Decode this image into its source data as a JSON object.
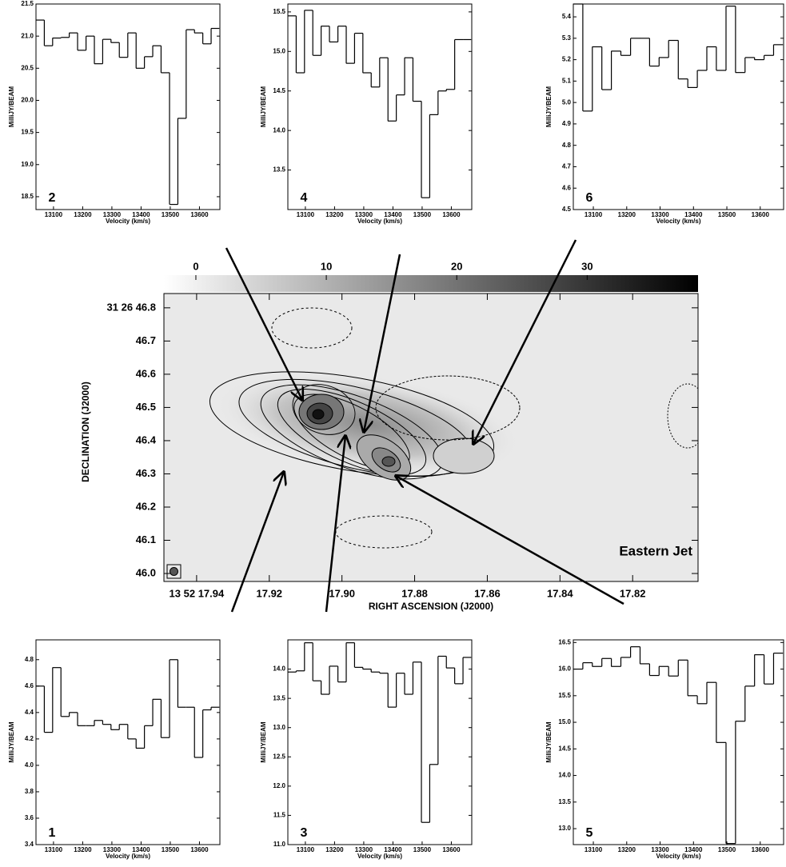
{
  "chart_data": [
    {
      "type": "line",
      "annotation": "2",
      "xlabel": "Velocity (km/s)",
      "ylabel": "MilliJY/BEAM",
      "color": "#000000",
      "x": [
        13054,
        13083,
        13111,
        13140,
        13168,
        13197,
        13226,
        13254,
        13283,
        13311,
        13340,
        13369,
        13397,
        13426,
        13454,
        13483,
        13512,
        13540,
        13569,
        13597,
        13626,
        13654
      ],
      "values": [
        21.25,
        20.85,
        20.97,
        20.98,
        21.05,
        20.78,
        21.0,
        20.57,
        20.95,
        20.9,
        20.67,
        21.05,
        20.5,
        20.68,
        20.85,
        20.43,
        18.38,
        19.72,
        21.1,
        21.05,
        20.88,
        21.12
      ],
      "xlim": [
        13040,
        13670
      ],
      "xticks": [
        13100,
        13200,
        13300,
        13400,
        13500,
        13600
      ],
      "ylim": [
        18.3,
        21.5
      ],
      "yticks": [
        18.5,
        {
          "value": 19,
          "label": "19.0"
        },
        19.5,
        {
          "value": 20,
          "label": "20.0"
        },
        20.5,
        {
          "value": 21,
          "label": "21.0"
        },
        21.5
      ]
    },
    {
      "type": "line",
      "annotation": "4",
      "xlabel": "Velocity (km/s)",
      "ylabel": "MilliJY/BEAM",
      "color": "#000000",
      "x": [
        13054,
        13083,
        13111,
        13140,
        13168,
        13197,
        13226,
        13254,
        13283,
        13311,
        13340,
        13369,
        13397,
        13426,
        13454,
        13483,
        13512,
        13540,
        13569,
        13597,
        13626,
        13654
      ],
      "values": [
        15.45,
        14.73,
        15.52,
        14.95,
        15.32,
        15.12,
        15.32,
        14.85,
        15.23,
        14.73,
        14.55,
        14.92,
        14.12,
        14.45,
        14.92,
        14.37,
        13.15,
        14.2,
        14.5,
        14.52,
        15.15,
        15.15
      ],
      "xlim": [
        13040,
        13670
      ],
      "xticks": [
        13100,
        13200,
        13300,
        13400,
        13500,
        13600
      ],
      "ylim": [
        13.0,
        15.6
      ],
      "yticks": [
        13.5,
        {
          "value": 14,
          "label": "14.0"
        },
        14.5,
        {
          "value": 15,
          "label": "15.0"
        },
        15.5
      ]
    },
    {
      "type": "line",
      "annotation": "6",
      "xlabel": "Velocity (km/s)",
      "ylabel": "MilliJY/BEAM",
      "color": "#000000",
      "x": [
        13054,
        13083,
        13111,
        13140,
        13168,
        13197,
        13226,
        13254,
        13283,
        13311,
        13340,
        13369,
        13397,
        13426,
        13454,
        13483,
        13512,
        13540,
        13569,
        13597,
        13626,
        13654
      ],
      "values": [
        5.46,
        4.96,
        5.26,
        5.06,
        5.24,
        5.22,
        5.3,
        5.3,
        5.17,
        5.21,
        5.29,
        5.11,
        5.07,
        5.15,
        5.26,
        5.15,
        5.45,
        5.14,
        5.21,
        5.2,
        5.22,
        5.27
      ],
      "xlim": [
        13040,
        13670
      ],
      "xticks": [
        13100,
        13200,
        13300,
        13400,
        13500,
        13600
      ],
      "ylim": [
        4.5,
        5.46
      ],
      "yticks": [
        4.5,
        4.6,
        4.7,
        4.8,
        4.9,
        {
          "value": 5,
          "label": "5.0"
        },
        5.1,
        5.2,
        5.3,
        5.4
      ]
    },
    {
      "type": "line",
      "annotation": "1",
      "xlabel": "Velocity (km/s)",
      "ylabel": "MilliJY/BEAM",
      "color": "#000000",
      "x": [
        13054,
        13083,
        13111,
        13140,
        13168,
        13197,
        13226,
        13254,
        13283,
        13311,
        13340,
        13369,
        13397,
        13426,
        13454,
        13483,
        13512,
        13540,
        13569,
        13597,
        13626,
        13654
      ],
      "values": [
        4.6,
        4.25,
        4.74,
        4.37,
        4.4,
        4.3,
        4.3,
        4.34,
        4.31,
        4.27,
        4.31,
        4.2,
        4.13,
        4.3,
        4.5,
        4.21,
        4.8,
        4.44,
        4.44,
        4.06,
        4.42,
        4.44
      ],
      "xlim": [
        13040,
        13670
      ],
      "xticks": [
        13100,
        13200,
        13300,
        13400,
        13500,
        13600
      ],
      "ylim": [
        3.4,
        4.95
      ],
      "yticks": [
        3.4,
        3.6,
        3.8,
        {
          "value": 4,
          "label": "4.0"
        },
        4.2,
        4.4,
        4.6,
        4.8
      ]
    },
    {
      "type": "line",
      "annotation": "3",
      "xlabel": "Velocity (km/s)",
      "ylabel": "MilliJY/BEAM",
      "color": "#000000",
      "x": [
        13054,
        13083,
        13111,
        13140,
        13168,
        13197,
        13226,
        13254,
        13283,
        13311,
        13340,
        13369,
        13397,
        13426,
        13454,
        13483,
        13512,
        13540,
        13569,
        13597,
        13626,
        13654
      ],
      "values": [
        13.95,
        13.97,
        14.45,
        13.8,
        13.57,
        14.05,
        13.78,
        14.45,
        14.03,
        14.0,
        13.95,
        13.93,
        13.35,
        13.93,
        13.57,
        14.12,
        11.38,
        12.37,
        14.22,
        14.02,
        13.75,
        14.2
      ],
      "xlim": [
        13040,
        13670
      ],
      "xticks": [
        13100,
        13200,
        13300,
        13400,
        13500,
        13600
      ],
      "ylim": [
        11.0,
        14.5
      ],
      "yticks": [
        {
          "value": 11,
          "label": "11.0"
        },
        11.5,
        {
          "value": 12,
          "label": "12.0"
        },
        12.5,
        {
          "value": 13,
          "label": "13.0"
        },
        13.5,
        {
          "value": 14,
          "label": "14.0"
        }
      ]
    },
    {
      "type": "line",
      "annotation": "5",
      "xlabel": "Velocity (km/s)",
      "ylabel": "MilliJY/BEAM",
      "color": "#000000",
      "x": [
        13054,
        13083,
        13111,
        13140,
        13168,
        13197,
        13226,
        13254,
        13283,
        13311,
        13340,
        13369,
        13397,
        13426,
        13454,
        13483,
        13512,
        13540,
        13569,
        13597,
        13626,
        13654
      ],
      "values": [
        16.0,
        16.12,
        16.05,
        16.2,
        16.05,
        16.22,
        16.42,
        16.1,
        15.88,
        16.05,
        15.87,
        16.17,
        15.5,
        15.35,
        15.75,
        14.62,
        12.72,
        15.02,
        15.68,
        16.27,
        15.72,
        16.3
      ],
      "xlim": [
        13040,
        13670
      ],
      "xticks": [
        13100,
        13200,
        13300,
        13400,
        13500,
        13600
      ],
      "ylim": [
        12.7,
        16.55
      ],
      "yticks": [
        {
          "value": 13,
          "label": "13.0"
        },
        13.5,
        {
          "value": 14,
          "label": "14.0"
        },
        14.5,
        {
          "value": 15,
          "label": "15.0"
        },
        15.5,
        {
          "value": 16,
          "label": "16.0"
        },
        16.5
      ]
    }
  ],
  "map": {
    "xlabel": "RIGHT ASCENSION (J2000)",
    "ylabel": "DECLINATION (J2000)",
    "annotation": "Eastern Jet",
    "xlim": [
      17.949,
      17.802
    ],
    "xticks": [
      {
        "value": 17.94,
        "label": "13 52 17.94"
      },
      17.92,
      {
        "value": 17.9,
        "label": "17.90"
      },
      17.88,
      17.86,
      17.84,
      17.82
    ],
    "ylim": [
      45.976,
      46.843
    ],
    "yticks": [
      {
        "value": 46,
        "label": "46.0"
      },
      46.1,
      46.2,
      46.3,
      46.4,
      46.5,
      46.6,
      46.7,
      {
        "value": 46.8,
        "label": "31 26 46.8"
      }
    ],
    "colorbar": {
      "lim": [
        -2.45,
        38.5
      ],
      "ticks": [
        0,
        10,
        20,
        30
      ]
    }
  }
}
